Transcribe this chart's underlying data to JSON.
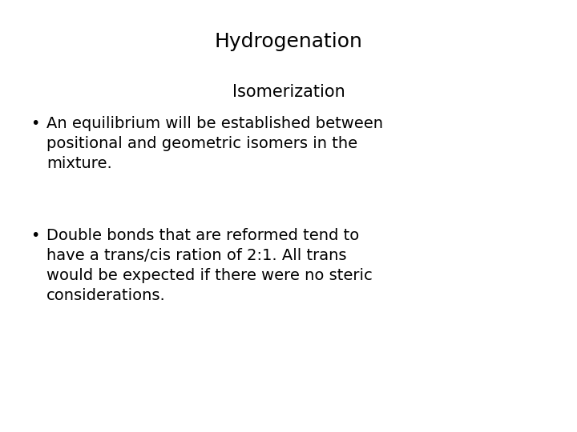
{
  "title": "Hydrogenation",
  "subtitle": "Isomerization",
  "bullet1_text": "An equilibrium will be established between\npositional and geometric isomers in the\nmixture.",
  "bullet2_text": "Double bonds that are reformed tend to\nhave a trans/cis ration of 2:1. All trans\nwould be expected if there were no steric\nconsiderations.",
  "background_color": "#ffffff",
  "text_color": "#000000",
  "title_fontsize": 18,
  "subtitle_fontsize": 15,
  "body_fontsize": 14,
  "bullet_fontsize": 14,
  "font_family": "DejaVu Sans"
}
